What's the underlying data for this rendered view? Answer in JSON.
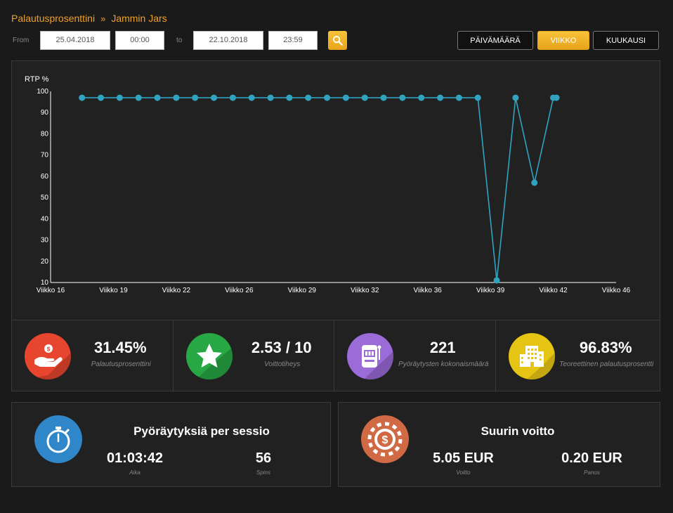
{
  "breadcrumb": {
    "items": [
      "Palautusprosenttini",
      "Jammin Jars"
    ],
    "separator": "»"
  },
  "filter": {
    "from_label": "From",
    "from_date": "25.04.2018",
    "from_time": "00:00",
    "to_label": "to",
    "to_date": "22.10.2018",
    "to_time": "23:59",
    "search_icon": "search-icon",
    "range_buttons": [
      "PÄIVÄMÄÄRÄ",
      "VIIKKO",
      "KUUKAUSI"
    ],
    "active_range": "VIIKKO"
  },
  "chart_data": {
    "type": "line",
    "ylabel": "RTP %",
    "ylim": [
      10,
      100
    ],
    "yticks": [
      10,
      20,
      30,
      40,
      50,
      60,
      70,
      80,
      90,
      100
    ],
    "xlim": [
      16,
      46
    ],
    "xticks": [
      {
        "label": "Viikko 16",
        "x": 16
      },
      {
        "label": "Viikko 19",
        "x": 19
      },
      {
        "label": "Viikko 22",
        "x": 22
      },
      {
        "label": "Viikko 26",
        "x": 25
      },
      {
        "label": "Viikko 29",
        "x": 28
      },
      {
        "label": "Viikko 32",
        "x": 31
      },
      {
        "label": "Viikko 36",
        "x": 34
      },
      {
        "label": "Viikko 39",
        "x": 37
      },
      {
        "label": "Viikko 42",
        "x": 40
      },
      {
        "label": "Viikko 46",
        "x": 43
      }
    ],
    "line_color": "#2fa3c0",
    "grid": false,
    "series": [
      {
        "name": "",
        "points": [
          {
            "x": 17.5,
            "y": 97
          },
          {
            "x": 18.4,
            "y": 97
          },
          {
            "x": 19.3,
            "y": 97
          },
          {
            "x": 20.2,
            "y": 97
          },
          {
            "x": 21.1,
            "y": 97
          },
          {
            "x": 22.0,
            "y": 97
          },
          {
            "x": 22.9,
            "y": 97
          },
          {
            "x": 23.8,
            "y": 97
          },
          {
            "x": 24.7,
            "y": 97
          },
          {
            "x": 25.6,
            "y": 97
          },
          {
            "x": 26.5,
            "y": 97
          },
          {
            "x": 27.4,
            "y": 97
          },
          {
            "x": 28.3,
            "y": 97
          },
          {
            "x": 29.2,
            "y": 97
          },
          {
            "x": 30.1,
            "y": 97
          },
          {
            "x": 31.0,
            "y": 97
          },
          {
            "x": 31.9,
            "y": 97
          },
          {
            "x": 32.8,
            "y": 97
          },
          {
            "x": 33.7,
            "y": 97
          },
          {
            "x": 34.6,
            "y": 97
          },
          {
            "x": 35.5,
            "y": 97
          },
          {
            "x": 36.4,
            "y": 97
          },
          {
            "x": 37.3,
            "y": 11
          },
          {
            "x": 38.2,
            "y": 97
          },
          {
            "x": 39.1,
            "y": 57
          },
          {
            "x": 40.0,
            "y": 97
          },
          {
            "x": 40.15,
            "y": 97
          }
        ]
      }
    ]
  },
  "stats": [
    {
      "value": "31.45%",
      "label": "Palautusprosenttini",
      "icon": "hand-coin-icon",
      "color": "#e8452f"
    },
    {
      "value": "2.53 / 10",
      "label": "Voittotiheys",
      "icon": "star-icon",
      "color": "#27a844"
    },
    {
      "value": "221",
      "label": "Pyöräytysten kokonaismäärä",
      "icon": "slot-machine-icon",
      "color": "#9b6bd8"
    },
    {
      "value": "96.83%",
      "label": "Teoreettinen palautusprosentti",
      "icon": "building-icon",
      "color": "#e6c414"
    }
  ],
  "session_card": {
    "title": "Pyöräytyksiä per sessio",
    "icon": "stopwatch-icon",
    "icon_color": "#2f86c8",
    "time_value": "01:03:42",
    "time_label": "Aika",
    "spins_value": "56",
    "spins_label": "Spins"
  },
  "win_card": {
    "title": "Suurin voitto",
    "icon": "casino-chip-icon",
    "icon_color": "#cf6a45",
    "win_value": "5.05 EUR",
    "win_label": "Voitto",
    "bet_value": "0.20 EUR",
    "bet_label": "Panos"
  }
}
